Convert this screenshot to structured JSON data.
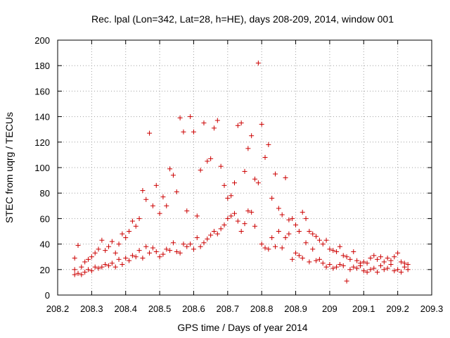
{
  "chart_data": {
    "type": "scatter",
    "title": "Rec. lpal (Lon=342, Lat=28, h=HE), days 208-209, 2014, window 001",
    "xlabel": "GPS time / Days of year 2014",
    "ylabel": "STEC from uqrg / TECUs",
    "xlim": [
      208.2,
      209.3
    ],
    "ylim": [
      0,
      200
    ],
    "xticks": [
      208.2,
      208.3,
      208.4,
      208.5,
      208.6,
      208.7,
      208.8,
      208.9,
      209,
      209.1,
      209.2,
      209.3
    ],
    "xtick_labels": [
      "208.2",
      "208.3",
      "208.4",
      "208.5",
      "208.6",
      "208.7",
      "208.8",
      "208.9",
      "209",
      "209.1",
      "209.2",
      "209.3"
    ],
    "yticks": [
      0,
      20,
      40,
      60,
      80,
      100,
      120,
      140,
      160,
      180,
      200
    ],
    "ytick_labels": [
      "0",
      "20",
      "40",
      "60",
      "80",
      "100",
      "120",
      "140",
      "160",
      "180",
      "200"
    ],
    "grid": true,
    "marker": "+",
    "color": "#cc0000",
    "series": [
      {
        "x": [
          208.25,
          208.25,
          208.25,
          208.26,
          208.26,
          208.27,
          208.27,
          208.28,
          208.28,
          208.29,
          208.29,
          208.3,
          208.3,
          208.31,
          208.31,
          208.32,
          208.32,
          208.33,
          208.33,
          208.34,
          208.34,
          208.35,
          208.35,
          208.36,
          208.36,
          208.37,
          208.37,
          208.38,
          208.38,
          208.39,
          208.39,
          208.4,
          208.4,
          208.41,
          208.41,
          208.42,
          208.42,
          208.43,
          208.43,
          208.44,
          208.44,
          208.45,
          208.45,
          208.46,
          208.46,
          208.47,
          208.47,
          208.48,
          208.48,
          208.49,
          208.49,
          208.5,
          208.5,
          208.51,
          208.51,
          208.52,
          208.52,
          208.53,
          208.53,
          208.54,
          208.54,
          208.55,
          208.55,
          208.56,
          208.56,
          208.57,
          208.57,
          208.58,
          208.58,
          208.59,
          208.59,
          208.6,
          208.6,
          208.61,
          208.61,
          208.62,
          208.62,
          208.63,
          208.63,
          208.64,
          208.64,
          208.65,
          208.65,
          208.66,
          208.66,
          208.67,
          208.67,
          208.68,
          208.68,
          208.69,
          208.69,
          208.7,
          208.7,
          208.71,
          208.71,
          208.72,
          208.72,
          208.73,
          208.73,
          208.74,
          208.74,
          208.75,
          208.75,
          208.76,
          208.76,
          208.77,
          208.77,
          208.78,
          208.78,
          208.79,
          208.79,
          208.8,
          208.8,
          208.81,
          208.81,
          208.82,
          208.82,
          208.83,
          208.83,
          208.84,
          208.84,
          208.85,
          208.85,
          208.86,
          208.86,
          208.87,
          208.87,
          208.88,
          208.88,
          208.89,
          208.89,
          208.9,
          208.9,
          208.91,
          208.91,
          208.92,
          208.92,
          208.93,
          208.93,
          208.94,
          208.94,
          208.95,
          208.95,
          208.96,
          208.96,
          208.97,
          208.97,
          208.98,
          208.98,
          208.99,
          208.99,
          209.0,
          209.0,
          209.01,
          209.01,
          209.02,
          209.02,
          209.03,
          209.03,
          209.04,
          209.04,
          209.05,
          209.05,
          209.06,
          209.06,
          209.07,
          209.07,
          209.08,
          209.08,
          209.09,
          209.09,
          209.1,
          209.1,
          209.11,
          209.11,
          209.12,
          209.12,
          209.13,
          209.13,
          209.14,
          209.14,
          209.15,
          209.15,
          209.16,
          209.16,
          209.17,
          209.17,
          209.18,
          209.18,
          209.19,
          209.19,
          209.2,
          209.2,
          209.21,
          209.21,
          209.22,
          209.22,
          209.23,
          209.23
        ],
        "y": [
          16,
          20,
          29,
          17,
          39,
          16,
          22,
          18,
          26,
          20,
          28,
          19,
          30,
          22,
          33,
          21,
          36,
          22,
          43,
          24,
          35,
          23,
          38,
          25,
          42,
          22,
          33,
          28,
          40,
          24,
          48,
          29,
          45,
          27,
          50,
          31,
          58,
          30,
          54,
          35,
          60,
          29,
          82,
          38,
          75,
          33,
          127,
          37,
          70,
          34,
          86,
          30,
          64,
          32,
          77,
          36,
          70,
          35,
          99,
          41,
          94,
          34,
          81,
          33,
          139,
          40,
          128,
          38,
          66,
          40,
          140,
          36,
          128,
          45,
          62,
          38,
          98,
          41,
          135,
          44,
          105,
          47,
          107,
          50,
          131,
          48,
          137,
          52,
          101,
          55,
          86,
          60,
          76,
          62,
          78,
          64,
          88,
          58,
          133,
          50,
          135,
          56,
          97,
          66,
          115,
          65,
          125,
          54,
          91,
          88,
          182,
          40,
          134,
          37,
          108,
          36,
          118,
          45,
          76,
          38,
          95,
          50,
          68,
          37,
          63,
          45,
          92,
          48,
          59,
          28,
          60,
          33,
          55,
          31,
          50,
          29,
          65,
          41,
          60,
          26,
          50,
          36,
          48,
          27,
          46,
          28,
          43,
          25,
          40,
          22,
          43,
          24,
          36,
          21,
          35,
          22,
          34,
          24,
          38,
          23,
          31,
          11,
          30,
          20,
          28,
          22,
          34,
          21,
          27,
          23,
          25,
          19,
          26,
          18,
          25,
          20,
          29,
          21,
          31,
          18,
          28,
          23,
          30,
          20,
          26,
          21,
          29,
          24,
          27,
          19,
          30,
          20,
          33,
          18,
          26,
          22,
          25,
          20,
          24
        ]
      }
    ]
  }
}
